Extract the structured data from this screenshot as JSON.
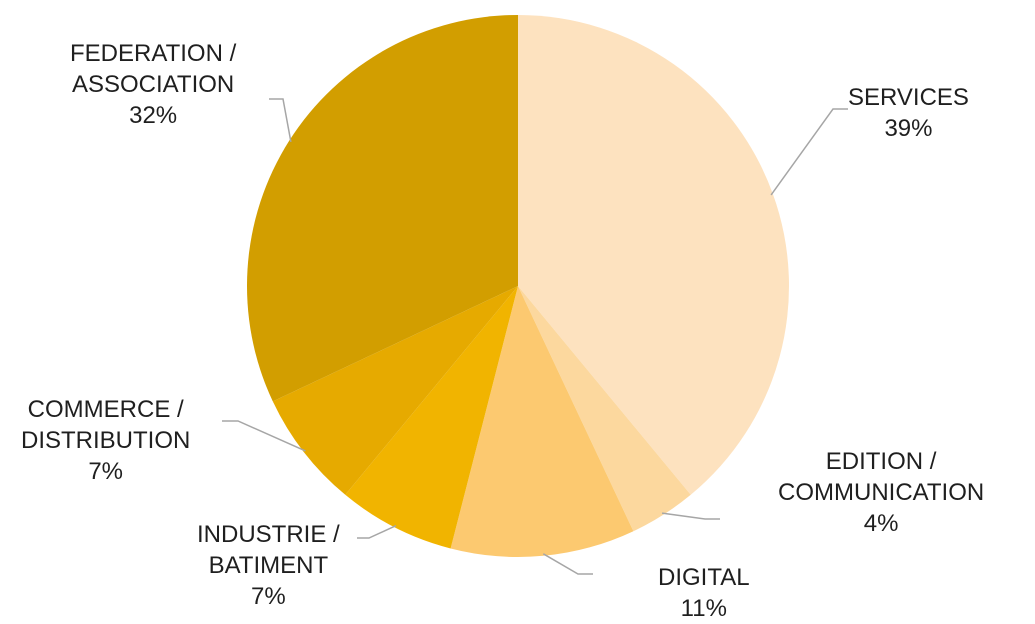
{
  "chart_data": {
    "type": "pie",
    "title": "",
    "slices": [
      {
        "label_lines": [
          "SERVICES"
        ],
        "percent_label": "39%",
        "value": 39,
        "color": "#FDE2BF"
      },
      {
        "label_lines": [
          "EDITION /",
          "COMMUNICATION"
        ],
        "percent_label": "4%",
        "value": 4,
        "color": "#FCD89E"
      },
      {
        "label_lines": [
          "DIGITAL"
        ],
        "percent_label": "11%",
        "value": 11,
        "color": "#FCC970"
      },
      {
        "label_lines": [
          "INDUSTRIE /",
          "BATIMENT"
        ],
        "percent_label": "7%",
        "value": 7,
        "color": "#F1B400"
      },
      {
        "label_lines": [
          "COMMERCE /",
          "DISTRIBUTION"
        ],
        "percent_label": "7%",
        "value": 7,
        "color": "#E6AA00"
      },
      {
        "label_lines": [
          "FEDERATION /",
          "ASSOCIATION"
        ],
        "percent_label": "32%",
        "value": 32,
        "color": "#D29E00"
      }
    ],
    "legend": "none",
    "leader_line_color": "#A6A6A6"
  }
}
